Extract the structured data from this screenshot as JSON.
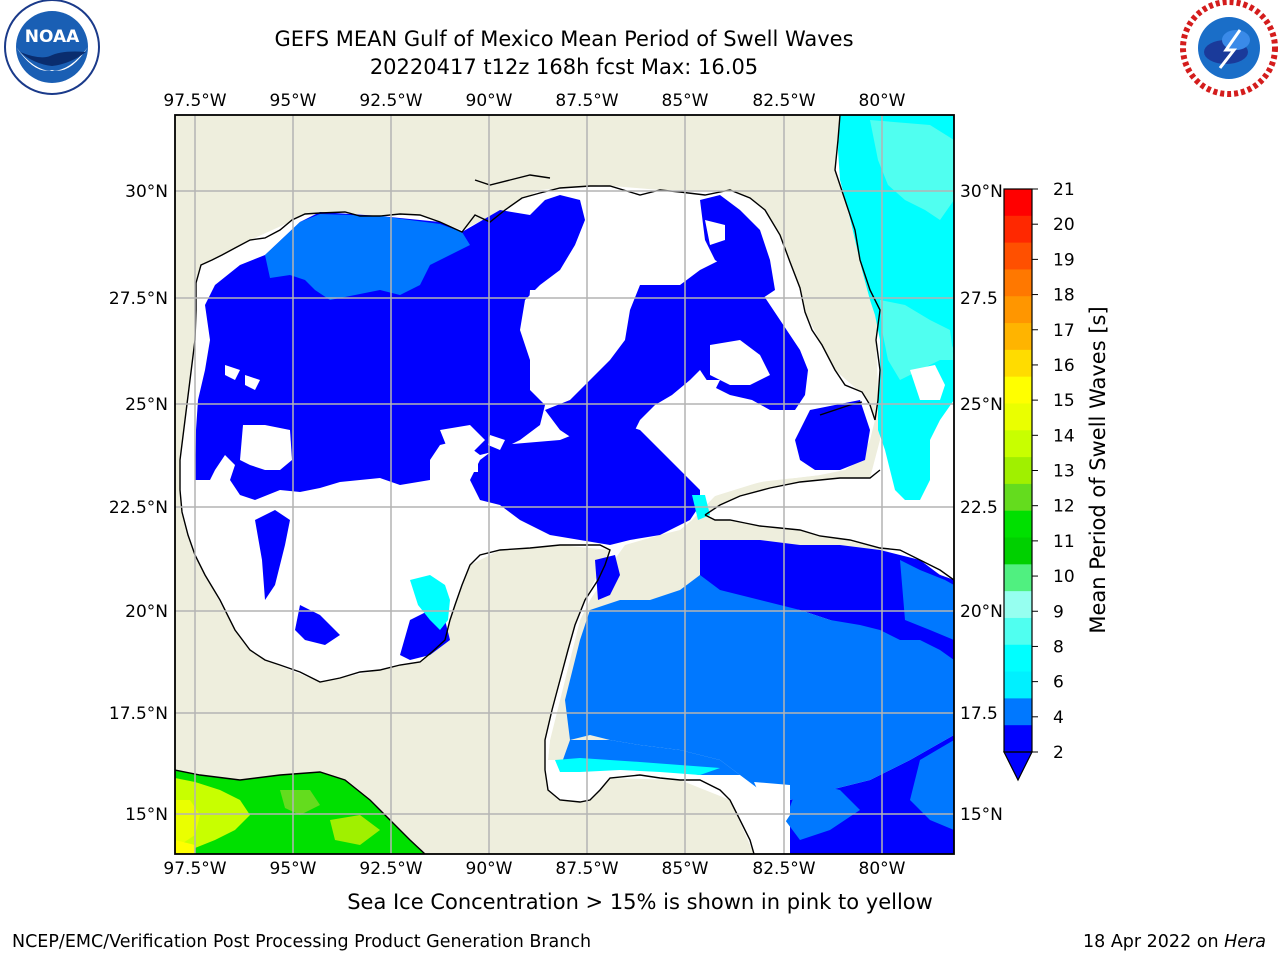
{
  "header": {
    "title_line1": "GEFS MEAN Gulf of Mexico Mean Period of Swell Waves",
    "title_line2": "20220417 t12z 168h fcst   Max: 16.05"
  },
  "logos": {
    "left": {
      "icon": "noaa-logo",
      "text": "NOAA",
      "ring_text": "NATIONAL OCEANIC AND ATMOSPHERIC ADMINISTRATION · U.S. DEPARTMENT OF COMMERCE"
    },
    "right": {
      "icon": "nws-logo",
      "ring_text": "NATIONAL WEATHER SERVICE"
    }
  },
  "map": {
    "lon_labels": [
      "97.5°W",
      "95°W",
      "92.5°W",
      "90°W",
      "87.5°W",
      "85°W",
      "82.5°W",
      "80°W"
    ],
    "lat_labels_left": [
      "30°N",
      "27.5°N",
      "25°N",
      "22.5°N",
      "20°N",
      "17.5°N",
      "15°N"
    ],
    "lat_labels_right": [
      "30°N",
      "27.5",
      "25°N",
      "22.5",
      "20°N",
      "17.5",
      "15°N"
    ],
    "colors": {
      "land": "#eeeedd",
      "grid": "#b4b4b4",
      "coast": "#000000",
      "no_data": "#ffffff"
    }
  },
  "colorbar": {
    "label": "Mean Period of Swell Waves [s]",
    "ticks": [
      "21",
      "20",
      "19",
      "18",
      "17",
      "16",
      "15",
      "14",
      "13",
      "12",
      "11",
      "10",
      "9",
      "8",
      "6",
      "4",
      "2"
    ],
    "colors_top_to_bottom": [
      "#ff0000",
      "#ff2800",
      "#ff5000",
      "#ff7800",
      "#ff9600",
      "#ffb400",
      "#ffdc00",
      "#ffff00",
      "#eaff00",
      "#c8ff00",
      "#a0f000",
      "#64dc1e",
      "#00e000",
      "#00d000",
      "#50f080",
      "#96fff0",
      "#50fff0",
      "#00ffff",
      "#00f0ff",
      "#0078ff",
      "#0000ff"
    ],
    "extend_color": "#0000ff"
  },
  "footer": {
    "note": "Sea Ice Concentration > 15% is shown in pink to yellow",
    "credit_left": "NCEP/EMC/Verification Post Processing Product Generation Branch",
    "credit_right_date": "18 Apr 2022 on ",
    "credit_right_host": "Hera"
  }
}
